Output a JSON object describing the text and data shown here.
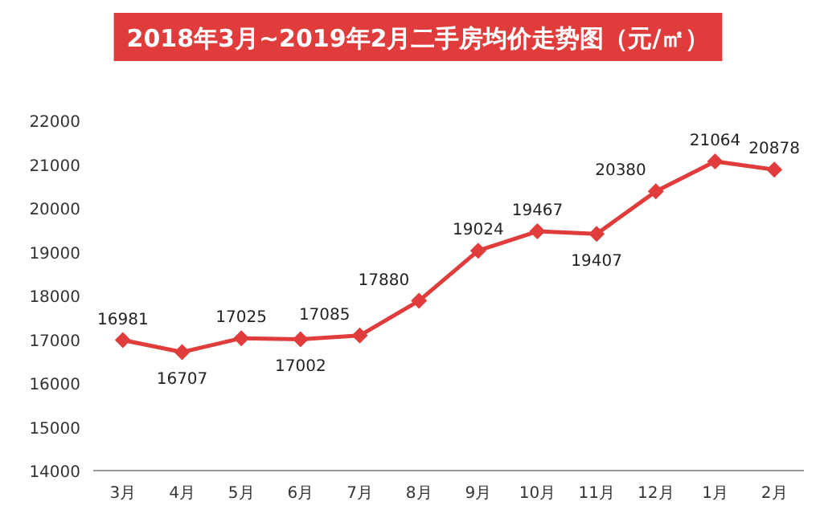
{
  "chart_data": {
    "type": "line",
    "title": "2018年3月~2019年2月二手房均价走势图（元/㎡）",
    "categories": [
      "3月",
      "4月",
      "5月",
      "6月",
      "7月",
      "8月",
      "9月",
      "10月",
      "11月",
      "12月",
      "1月",
      "2月"
    ],
    "series": [
      {
        "color": "#e03c3c",
        "values": [
          16981,
          16707,
          17025,
          17002,
          17085,
          17880,
          19024,
          19467,
          19407,
          20380,
          21064,
          20878
        ]
      }
    ],
    "ylim": [
      14000,
      22000
    ],
    "yticks": [
      14000,
      15000,
      16000,
      17000,
      18000,
      19000,
      20000,
      21000,
      22000
    ],
    "marker": "diamond",
    "line_style": "solid",
    "data_labels": true
  }
}
